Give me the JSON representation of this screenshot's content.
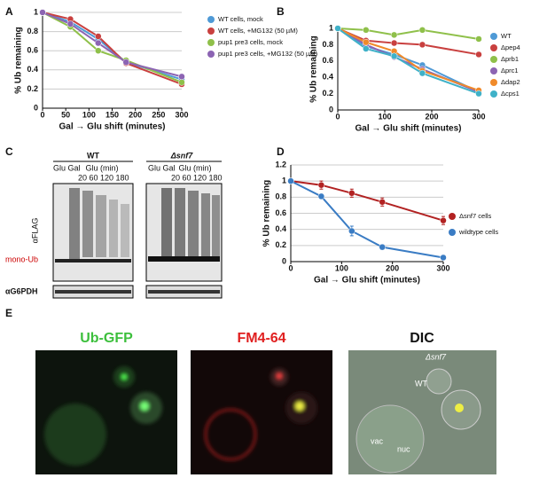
{
  "chart_data": [
    {
      "type": "line",
      "panel": "A",
      "xlabel": "Gal → Glu shift (minutes)",
      "ylabel": "% Ub remaining",
      "x": [
        0,
        60,
        120,
        180,
        300
      ],
      "xlim": [
        0,
        300
      ],
      "ylim": [
        0,
        1
      ],
      "xticks": [
        0,
        50,
        100,
        150,
        200,
        250,
        300
      ],
      "yticks": [
        0,
        0.2,
        0.4,
        0.6,
        0.8,
        1
      ],
      "grid": true,
      "legend": "right",
      "series": [
        {
          "name": "WT cells, mock",
          "color": "#4f9ad6",
          "values": [
            1,
            0.9,
            0.72,
            0.48,
            0.3
          ]
        },
        {
          "name": "WT cells, +MG132 (50 µM)",
          "color": "#c9403f",
          "values": [
            1,
            0.93,
            0.75,
            0.47,
            0.25
          ]
        },
        {
          "name": "pup1 pre3 cells, mock",
          "color": "#8fc04a",
          "values": [
            1,
            0.85,
            0.6,
            0.5,
            0.27
          ]
        },
        {
          "name": "pup1 pre3 cells, +MG132 (50 µM)",
          "color": "#8c64b3",
          "values": [
            1,
            0.88,
            0.68,
            0.48,
            0.33
          ]
        }
      ]
    },
    {
      "type": "line",
      "panel": "B",
      "xlabel": "Gal → Glu shift (minutes)",
      "ylabel": "% Ub remaining",
      "x": [
        0,
        60,
        120,
        180,
        300
      ],
      "xlim": [
        0,
        300
      ],
      "ylim": [
        0,
        1
      ],
      "xticks": [
        0,
        100,
        200,
        300
      ],
      "yticks": [
        0,
        0.2,
        0.4,
        0.6,
        0.8,
        1
      ],
      "grid": false,
      "legend": "right",
      "series": [
        {
          "name": "WT",
          "color": "#4f9ad6",
          "values": [
            1,
            0.78,
            0.68,
            0.55,
            0.22
          ]
        },
        {
          "name": "Δpep4",
          "color": "#c9403f",
          "values": [
            1,
            0.85,
            0.82,
            0.8,
            0.68
          ]
        },
        {
          "name": "Δprb1",
          "color": "#8fc04a",
          "values": [
            1,
            0.98,
            0.92,
            0.98,
            0.87
          ]
        },
        {
          "name": "Δprc1",
          "color": "#8c64b3",
          "values": [
            1,
            0.8,
            0.65,
            0.5,
            0.22
          ]
        },
        {
          "name": "Δdap2",
          "color": "#f08a2a",
          "values": [
            1,
            0.83,
            0.72,
            0.48,
            0.24
          ]
        },
        {
          "name": "Δcps1",
          "color": "#3fb1c8",
          "values": [
            1,
            0.75,
            0.66,
            0.45,
            0.2
          ]
        }
      ]
    },
    {
      "type": "line",
      "panel": "D",
      "xlabel": "Gal → Glu shift (minutes)",
      "ylabel": "% Ub remaining",
      "x": [
        0,
        60,
        120,
        180,
        300
      ],
      "xlim": [
        0,
        300
      ],
      "ylim": [
        0,
        1.2
      ],
      "xticks": [
        0,
        100,
        200,
        300
      ],
      "yticks": [
        0,
        0.2,
        0.4,
        0.6,
        0.8,
        1,
        1.2
      ],
      "grid": true,
      "legend": "right",
      "series": [
        {
          "name": "Δsnf7 cells",
          "color": "#b22222",
          "values": [
            1,
            0.95,
            0.85,
            0.74,
            0.51
          ],
          "errors": [
            0,
            0.05,
            0.05,
            0.05,
            0.05
          ]
        },
        {
          "name": "wildtype cells",
          "color": "#3a7cc4",
          "values": [
            1,
            0.81,
            0.38,
            0.18,
            0.05
          ],
          "errors": [
            0,
            0.03,
            0.06,
            0.03,
            0.02
          ]
        }
      ]
    }
  ],
  "blot": {
    "panel": "C",
    "groups": [
      "WT",
      "Δsnf7"
    ],
    "lanes": "Glu Gal",
    "glu": "Glu (min)",
    "times": "20 60 120 180",
    "antibody": "αFLAG",
    "mono": "mono-Ub",
    "loading": "αG6PDH"
  },
  "microscopy": {
    "panel": "E",
    "channels": [
      "Ub-GFP",
      "FM4-64",
      "DIC"
    ],
    "labels": [
      "WT",
      "Δsnf7",
      "vac",
      "nuc"
    ]
  }
}
